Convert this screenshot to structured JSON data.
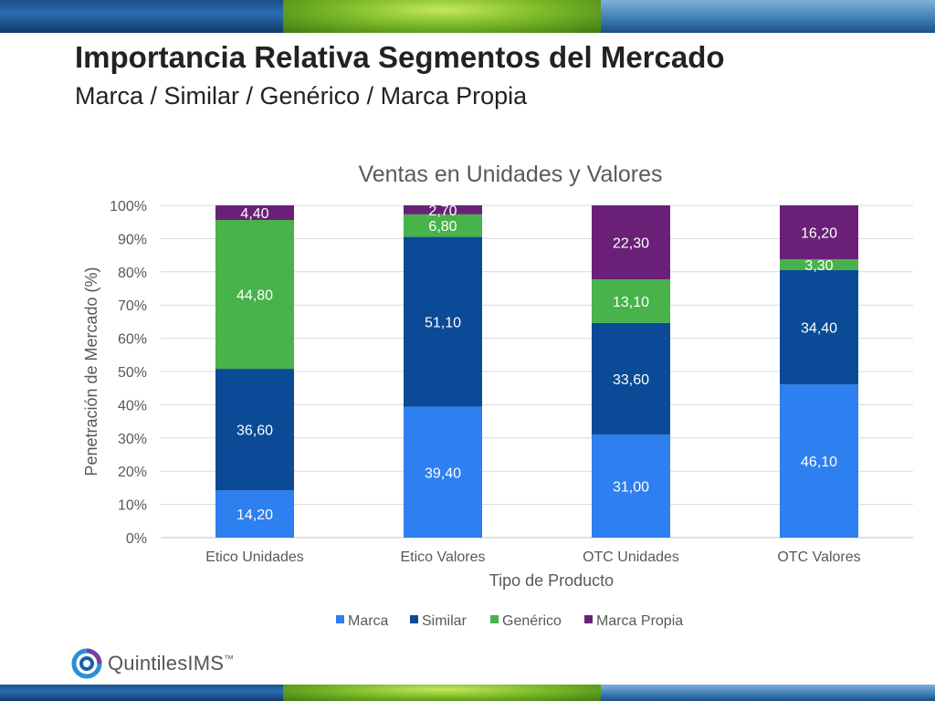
{
  "header": {
    "title": "Importancia Relativa Segmentos del Mercado",
    "subtitle": "Marca / Similar / Genérico / Marca Propia"
  },
  "logo": {
    "text": "QuintilesIMS",
    "mark": "™"
  },
  "chart_data": {
    "type": "bar",
    "stacked": true,
    "title": "Ventas en Unidades y Valores",
    "xlabel": "Tipo de Producto",
    "ylabel": "Penetración de Mercado (%)",
    "ylim": [
      0,
      100
    ],
    "yticks": [
      "0%",
      "10%",
      "20%",
      "30%",
      "40%",
      "50%",
      "60%",
      "70%",
      "80%",
      "90%",
      "100%"
    ],
    "grid": true,
    "legend_position": "bottom",
    "categories": [
      "Etico Unidades",
      "Etico Valores",
      "OTC Unidades",
      "OTC Valores"
    ],
    "series": [
      {
        "name": "Marca",
        "color": "#2e7ff0",
        "values": [
          14.2,
          39.4,
          31.0,
          46.1
        ],
        "labels": [
          "14,20",
          "39,40",
          "31,00",
          "46,10"
        ]
      },
      {
        "name": "Similar",
        "color": "#0a4a96",
        "values": [
          36.6,
          51.1,
          33.6,
          34.4
        ],
        "labels": [
          "36,60",
          "51,10",
          "33,60",
          "34,40"
        ]
      },
      {
        "name": "Genérico",
        "color": "#47b34a",
        "values": [
          44.8,
          6.8,
          13.1,
          3.3
        ],
        "labels": [
          "44,80",
          "6,80",
          "13,10",
          "3,30"
        ]
      },
      {
        "name": "Marca Propia",
        "color": "#6a2077",
        "values": [
          4.4,
          2.7,
          22.3,
          16.2
        ],
        "labels": [
          "4,40",
          "2,70",
          "22,30",
          "16,20"
        ]
      }
    ]
  }
}
